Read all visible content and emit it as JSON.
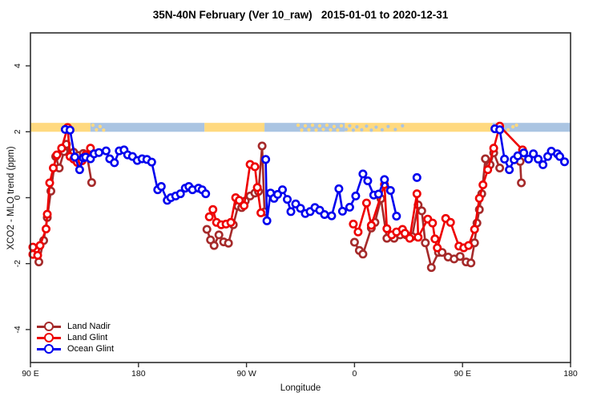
{
  "colors": {
    "land_nadir": "#A52A2A",
    "land_glint": "#EE0000",
    "ocean_glint": "#0000EE",
    "band_land": "#FFD97F",
    "band_ocean": "#AAC4E2",
    "frame": "#2F2F2F",
    "tick_text": "#111111"
  },
  "legend": {
    "position": "bottom-left",
    "items": [
      {
        "label": "Land Nadir",
        "color": "land_nadir"
      },
      {
        "label": "Land Glint",
        "color": "land_glint"
      },
      {
        "label": "Ocean Glint",
        "color": "ocean_glint"
      }
    ]
  },
  "chart_data": {
    "type": "line",
    "title": "35N-40N February (Ver 10_raw)   2015-01-01 to 2020-12-31",
    "xlabel": "Longitude",
    "ylabel": "XCO2 - MLO trend (ppm)",
    "xlim": [
      0,
      450
    ],
    "ylim": [
      -5,
      5
    ],
    "grid": false,
    "x_ticks": [
      {
        "v": 0,
        "label": "90 E"
      },
      {
        "v": 90,
        "label": "180"
      },
      {
        "v": 180,
        "label": "90 W"
      },
      {
        "v": 270,
        "label": "0"
      },
      {
        "v": 360,
        "label": "90 E"
      },
      {
        "v": 450,
        "label": "180"
      }
    ],
    "y_ticks": [
      {
        "v": -4,
        "label": "-4"
      },
      {
        "v": -2,
        "label": "-2"
      },
      {
        "v": 0,
        "label": "0"
      },
      {
        "v": 2,
        "label": "2"
      },
      {
        "v": 4,
        "label": "4"
      }
    ],
    "band": {
      "description": "land/ocean strip along 35N-40N",
      "y_range": [
        2.0,
        2.27
      ],
      "segments": [
        {
          "x0": 0,
          "x1": 50,
          "c": "land"
        },
        {
          "x0": 50,
          "x1": 145,
          "c": "ocean"
        },
        {
          "x0": 145,
          "x1": 195,
          "c": "land"
        },
        {
          "x0": 195,
          "x1": 262,
          "c": "ocean"
        },
        {
          "x0": 262,
          "x1": 385,
          "c": "land"
        },
        {
          "x0": 385,
          "x1": 450,
          "c": "ocean"
        }
      ],
      "speckles": [
        {
          "x": 52,
          "y": 2.2,
          "c": "land"
        },
        {
          "x": 55,
          "y": 2.06,
          "c": "land"
        },
        {
          "x": 58,
          "y": 2.16,
          "c": "land"
        },
        {
          "x": 61,
          "y": 2.05,
          "c": "land"
        },
        {
          "x": 223,
          "y": 2.2,
          "c": "land"
        },
        {
          "x": 226,
          "y": 2.05,
          "c": "land"
        },
        {
          "x": 229,
          "y": 2.18,
          "c": "land"
        },
        {
          "x": 232,
          "y": 2.06,
          "c": "land"
        },
        {
          "x": 235,
          "y": 2.2,
          "c": "land"
        },
        {
          "x": 238,
          "y": 2.05,
          "c": "land"
        },
        {
          "x": 241,
          "y": 2.18,
          "c": "land"
        },
        {
          "x": 244,
          "y": 2.07,
          "c": "land"
        },
        {
          "x": 247,
          "y": 2.2,
          "c": "land"
        },
        {
          "x": 250,
          "y": 2.06,
          "c": "land"
        },
        {
          "x": 253,
          "y": 2.16,
          "c": "land"
        },
        {
          "x": 256,
          "y": 2.05,
          "c": "land"
        },
        {
          "x": 259,
          "y": 2.18,
          "c": "land"
        },
        {
          "x": 263,
          "y": 2.07,
          "c": "ocean"
        },
        {
          "x": 266,
          "y": 2.18,
          "c": "ocean"
        },
        {
          "x": 269,
          "y": 2.05,
          "c": "ocean"
        },
        {
          "x": 272,
          "y": 2.15,
          "c": "ocean"
        },
        {
          "x": 276,
          "y": 2.06,
          "c": "ocean"
        },
        {
          "x": 280,
          "y": 2.17,
          "c": "ocean"
        },
        {
          "x": 284,
          "y": 2.05,
          "c": "ocean"
        },
        {
          "x": 288,
          "y": 2.14,
          "c": "ocean"
        },
        {
          "x": 293,
          "y": 2.06,
          "c": "ocean"
        },
        {
          "x": 298,
          "y": 2.16,
          "c": "ocean"
        },
        {
          "x": 304,
          "y": 2.07,
          "c": "ocean"
        },
        {
          "x": 310,
          "y": 2.18,
          "c": "ocean"
        },
        {
          "x": 388,
          "y": 2.2,
          "c": "land"
        },
        {
          "x": 391,
          "y": 2.05,
          "c": "land"
        },
        {
          "x": 394,
          "y": 2.17,
          "c": "land"
        },
        {
          "x": 398,
          "y": 2.06,
          "c": "land"
        },
        {
          "x": 402,
          "y": 2.15,
          "c": "land"
        },
        {
          "x": 405,
          "y": 2.2,
          "c": "land"
        }
      ]
    },
    "series": [
      {
        "id": "land-nadir",
        "name": "Land Nadir",
        "color": "land_nadir",
        "marker": "open-circle",
        "segments": [
          [
            [
              7,
              -1.95
            ],
            [
              11,
              -1.3
            ],
            [
              14,
              -0.6
            ],
            [
              17,
              0.2
            ],
            [
              21,
              1.25
            ],
            [
              24,
              0.9
            ],
            [
              28,
              1.4
            ],
            [
              30,
              1.62
            ],
            [
              33,
              1.3
            ],
            [
              36,
              1.38
            ],
            [
              40,
              1.28
            ],
            [
              44,
              1.34
            ],
            [
              47,
              1.3
            ],
            [
              51,
              0.46
            ]
          ],
          [
            [
              147,
              -0.96
            ],
            [
              150,
              -1.28
            ],
            [
              153,
              -1.45
            ],
            [
              157,
              -1.13
            ],
            [
              161,
              -1.34
            ],
            [
              165,
              -1.38
            ],
            [
              169,
              -0.82
            ],
            [
              173,
              -0.26
            ],
            [
              176,
              -0.3
            ],
            [
              179,
              -0.1
            ],
            [
              183,
              0.05
            ],
            [
              187,
              0.14
            ],
            [
              190,
              0.19
            ],
            [
              193,
              1.57
            ],
            [
              195,
              -0.43
            ]
          ],
          [
            [
              270,
              -1.35
            ],
            [
              274,
              -1.6
            ],
            [
              277,
              -1.71
            ],
            [
              284,
              -0.92
            ],
            [
              287,
              -0.75
            ],
            [
              292,
              -0.03
            ],
            [
              297,
              -1.23
            ],
            [
              303,
              -1.23
            ],
            [
              308,
              -1.13
            ],
            [
              313,
              -1.13
            ],
            [
              318,
              -1.18
            ],
            [
              323,
              -0.22
            ],
            [
              326,
              -0.4
            ],
            [
              329,
              -1.37
            ],
            [
              334,
              -2.12
            ],
            [
              340,
              -1.66
            ],
            [
              343,
              -1.66
            ],
            [
              348,
              -1.8
            ],
            [
              353,
              -1.86
            ],
            [
              358,
              -1.78
            ],
            [
              363,
              -1.95
            ],
            [
              367,
              -1.98
            ],
            [
              370,
              -1.37
            ],
            [
              372,
              -0.77
            ],
            [
              374,
              -0.36
            ],
            [
              376,
              0.12
            ],
            [
              379,
              1.18
            ],
            [
              383,
              1.0
            ],
            [
              386,
              1.36
            ],
            [
              391,
              0.9
            ]
          ],
          [
            [
              408,
              1.1
            ],
            [
              409,
              0.45
            ]
          ]
        ]
      },
      {
        "id": "land-glint",
        "name": "Land Glint",
        "color": "land_glint",
        "marker": "open-circle",
        "segments": [
          [
            [
              2,
              -1.5
            ],
            [
              2,
              -1.72
            ],
            [
              6,
              -1.75
            ],
            [
              8,
              -1.45
            ],
            [
              13,
              -0.95
            ],
            [
              14,
              -0.5
            ],
            [
              16,
              0.45
            ],
            [
              19,
              0.9
            ],
            [
              22,
              1.3
            ],
            [
              26,
              1.5
            ],
            [
              31,
              2.13
            ],
            [
              33,
              1.25
            ],
            [
              36,
              1.17
            ],
            [
              39,
              1.07
            ],
            [
              43,
              1.12
            ],
            [
              46,
              1.3
            ],
            [
              50,
              1.5
            ]
          ],
          [
            [
              149,
              -0.58
            ],
            [
              152,
              -0.36
            ],
            [
              155,
              -0.75
            ],
            [
              159,
              -0.82
            ],
            [
              163,
              -0.8
            ],
            [
              167,
              -0.75
            ],
            [
              171,
              0.0
            ],
            [
              174,
              -0.08
            ],
            [
              178,
              -0.24
            ],
            [
              183,
              1.01
            ],
            [
              187,
              0.94
            ],
            [
              189,
              0.31
            ],
            [
              192,
              -0.46
            ]
          ],
          [
            [
              269,
              -0.8
            ],
            [
              273,
              -1.04
            ],
            [
              280,
              -0.16
            ],
            [
              284,
              -0.84
            ],
            [
              295,
              0.4
            ],
            [
              297,
              -0.94
            ],
            [
              301,
              -1.13
            ],
            [
              305,
              -1.04
            ],
            [
              310,
              -0.96
            ],
            [
              312,
              -1.08
            ],
            [
              316,
              -1.23
            ],
            [
              322,
              0.12
            ],
            [
              323,
              -1.2
            ],
            [
              331,
              -0.65
            ],
            [
              335,
              -0.77
            ],
            [
              337,
              -1.25
            ],
            [
              339,
              -1.52
            ],
            [
              346,
              -0.63
            ],
            [
              350,
              -0.75
            ],
            [
              357,
              -1.47
            ],
            [
              361,
              -1.52
            ],
            [
              365,
              -1.45
            ],
            [
              370,
              -0.96
            ],
            [
              374,
              -0.02
            ],
            [
              377,
              0.39
            ],
            [
              381,
              0.85
            ],
            [
              386,
              1.5
            ],
            [
              391,
              2.17
            ],
            [
              410,
              1.45
            ]
          ]
        ]
      },
      {
        "id": "ocean-glint",
        "name": "Ocean Glint",
        "color": "ocean_glint",
        "marker": "open-circle",
        "segments": [
          [
            [
              29,
              2.07
            ],
            [
              33,
              2.05
            ],
            [
              37,
              1.23
            ],
            [
              41,
              0.85
            ],
            [
              44,
              1.21
            ],
            [
              46,
              1.23
            ],
            [
              50,
              1.18
            ],
            [
              53,
              1.33
            ],
            [
              57,
              1.37
            ],
            [
              63,
              1.42
            ],
            [
              66,
              1.18
            ],
            [
              70,
              1.06
            ],
            [
              74,
              1.42
            ],
            [
              78,
              1.45
            ],
            [
              81,
              1.3
            ],
            [
              85,
              1.25
            ],
            [
              89,
              1.13
            ],
            [
              93,
              1.18
            ],
            [
              97,
              1.16
            ],
            [
              101,
              1.08
            ],
            [
              106,
              0.24
            ],
            [
              109,
              0.34
            ],
            [
              114,
              -0.08
            ],
            [
              117,
              0.0
            ],
            [
              121,
              0.05
            ],
            [
              125,
              0.12
            ],
            [
              129,
              0.29
            ],
            [
              132,
              0.34
            ],
            [
              135,
              0.24
            ],
            [
              140,
              0.29
            ],
            [
              143,
              0.24
            ],
            [
              146,
              0.12
            ]
          ],
          [
            [
              196,
              1.16
            ],
            [
              197,
              -0.7
            ],
            [
              200,
              0.14
            ],
            [
              203,
              -0.02
            ],
            [
              206,
              0.1
            ],
            [
              210,
              0.24
            ],
            [
              214,
              -0.05
            ],
            [
              217,
              -0.42
            ],
            [
              221,
              -0.19
            ],
            [
              225,
              -0.32
            ],
            [
              229,
              -0.48
            ],
            [
              233,
              -0.42
            ],
            [
              237,
              -0.3
            ],
            [
              241,
              -0.38
            ],
            [
              245,
              -0.51
            ],
            [
              251,
              -0.55
            ],
            [
              257,
              0.27
            ],
            [
              260,
              -0.41
            ],
            [
              266,
              -0.29
            ],
            [
              271,
              0.05
            ],
            [
              277,
              0.72
            ],
            [
              281,
              0.51
            ],
            [
              286,
              0.08
            ],
            [
              290,
              0.11
            ],
            [
              295,
              0.55
            ],
            [
              300,
              0.22
            ],
            [
              305,
              -0.56
            ]
          ],
          [
            [
              322,
              0.61
            ]
          ],
          [
            [
              387,
              2.09
            ],
            [
              391,
              2.06
            ],
            [
              395,
              1.17
            ],
            [
              399,
              0.85
            ],
            [
              403,
              1.15
            ],
            [
              406,
              1.27
            ],
            [
              411,
              1.36
            ],
            [
              415,
              1.17
            ],
            [
              419,
              1.33
            ],
            [
              423,
              1.17
            ],
            [
              427,
              1.0
            ],
            [
              431,
              1.25
            ],
            [
              434,
              1.41
            ],
            [
              439,
              1.33
            ],
            [
              441,
              1.25
            ],
            [
              445,
              1.09
            ]
          ]
        ]
      }
    ]
  }
}
